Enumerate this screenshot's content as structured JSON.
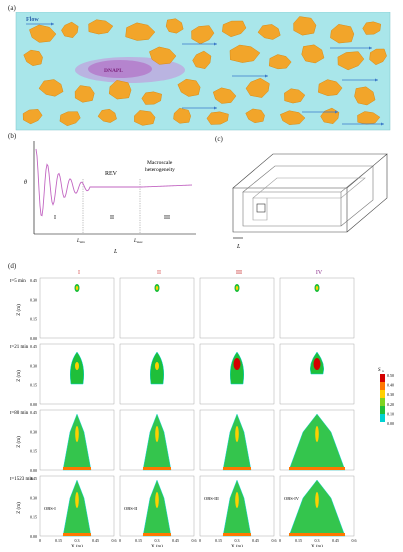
{
  "panel_a": {
    "label": "(a)",
    "flow_label": "Flow",
    "dnapl_label": "DNAPL",
    "colors": {
      "background": "#a9e6ea",
      "grain": "#f2a52a",
      "dnapl": "#c98bd8",
      "arrow": "#3a79c8"
    }
  },
  "panel_b": {
    "label": "(b)",
    "y_label": "θ",
    "x_label": "L",
    "region_labels": [
      "I",
      "II",
      "III"
    ],
    "rev_label": "REV",
    "macro_label_1": "Macroscale",
    "macro_label_2": "heterogeneity",
    "lmin_label": "L",
    "lmin_sub": "min",
    "lmax_label": "L",
    "lmax_sub": "max",
    "curve_color": "#c266c2"
  },
  "panel_c": {
    "label": "(c)",
    "l_label": "L"
  },
  "panel_d": {
    "label": "(d)",
    "column_headers": [
      "I",
      "II",
      "III",
      "IV"
    ],
    "column_header_colors": [
      "#d64a4a",
      "#d64a4a",
      "#c42020",
      "#8a2b8a"
    ],
    "row_labels": [
      "t=5 min",
      "t=21 min",
      "t=80 min",
      "t=1523 min"
    ],
    "y_axis_label": "Z (m)",
    "x_axis_label": "X (m)",
    "y_ticks": [
      "0.45",
      "0.30",
      "0.15",
      "0.00"
    ],
    "x_ticks": [
      "0",
      "0.15",
      "0.3",
      "0.45",
      "0.6"
    ],
    "obs_labels": [
      "OBS-I",
      "OBS-II",
      "OBS-III",
      "OBS-IV"
    ],
    "colorbar": {
      "title": "S",
      "title_sub": "n",
      "ticks": [
        "0.50",
        "0.40",
        "0.30",
        "0.20",
        "0.10",
        "0.00"
      ],
      "colors": [
        "#d40000",
        "#ff7700",
        "#ffd000",
        "#7ed321",
        "#1fbf3a",
        "#00d2d2"
      ]
    }
  }
}
